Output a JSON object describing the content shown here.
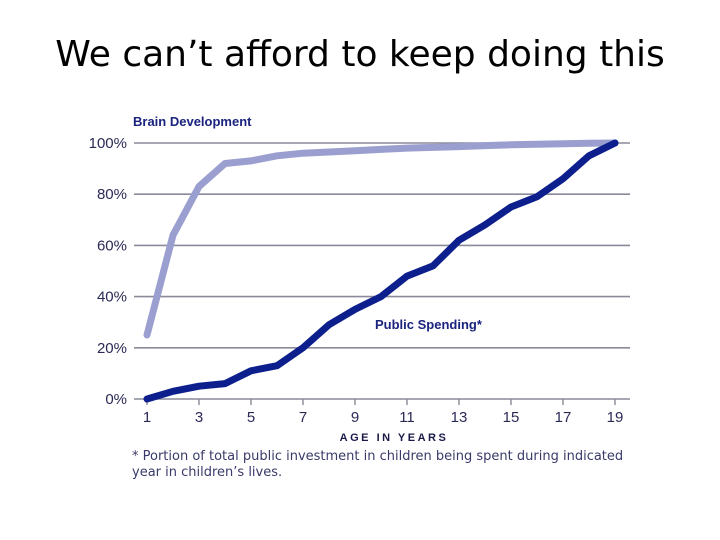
{
  "slide": {
    "title": "We can’t afford to keep doing this"
  },
  "chart_data": {
    "type": "line",
    "title": "",
    "xlabel": "AGE IN YEARS",
    "ylabel": "",
    "xlim": [
      1,
      19
    ],
    "ylim": [
      0,
      100
    ],
    "x_ticks": [
      1,
      3,
      5,
      7,
      9,
      11,
      13,
      15,
      17,
      19
    ],
    "y_ticks": [
      0,
      20,
      40,
      60,
      80,
      100
    ],
    "y_tick_labels": [
      "0%",
      "20%",
      "40%",
      "60%",
      "80%",
      "100%"
    ],
    "grid": true,
    "series": [
      {
        "name": "Brain Development",
        "color": "#9a9fd0",
        "x": [
          1,
          2,
          3,
          4,
          5,
          6,
          7,
          8,
          9,
          10,
          11,
          12,
          13,
          14,
          15,
          16,
          17,
          18,
          19
        ],
        "values": [
          25,
          64,
          83,
          92,
          93,
          95,
          96,
          96.5,
          97,
          97.5,
          98,
          98.3,
          98.6,
          99,
          99.3,
          99.5,
          99.7,
          99.9,
          100
        ]
      },
      {
        "name": "Public Spending*",
        "color": "#0d1f8c",
        "x": [
          1,
          2,
          3,
          4,
          5,
          6,
          7,
          8,
          9,
          10,
          11,
          12,
          13,
          14,
          15,
          16,
          17,
          18,
          19
        ],
        "values": [
          0,
          3,
          5,
          6,
          11,
          13,
          20,
          29,
          35,
          40,
          48,
          52,
          62,
          68,
          75,
          79,
          86,
          95,
          100
        ]
      }
    ],
    "footnote_lines": [
      "* Portion of total public investment in children being spent during indicated",
      "year in children’s lives."
    ]
  }
}
